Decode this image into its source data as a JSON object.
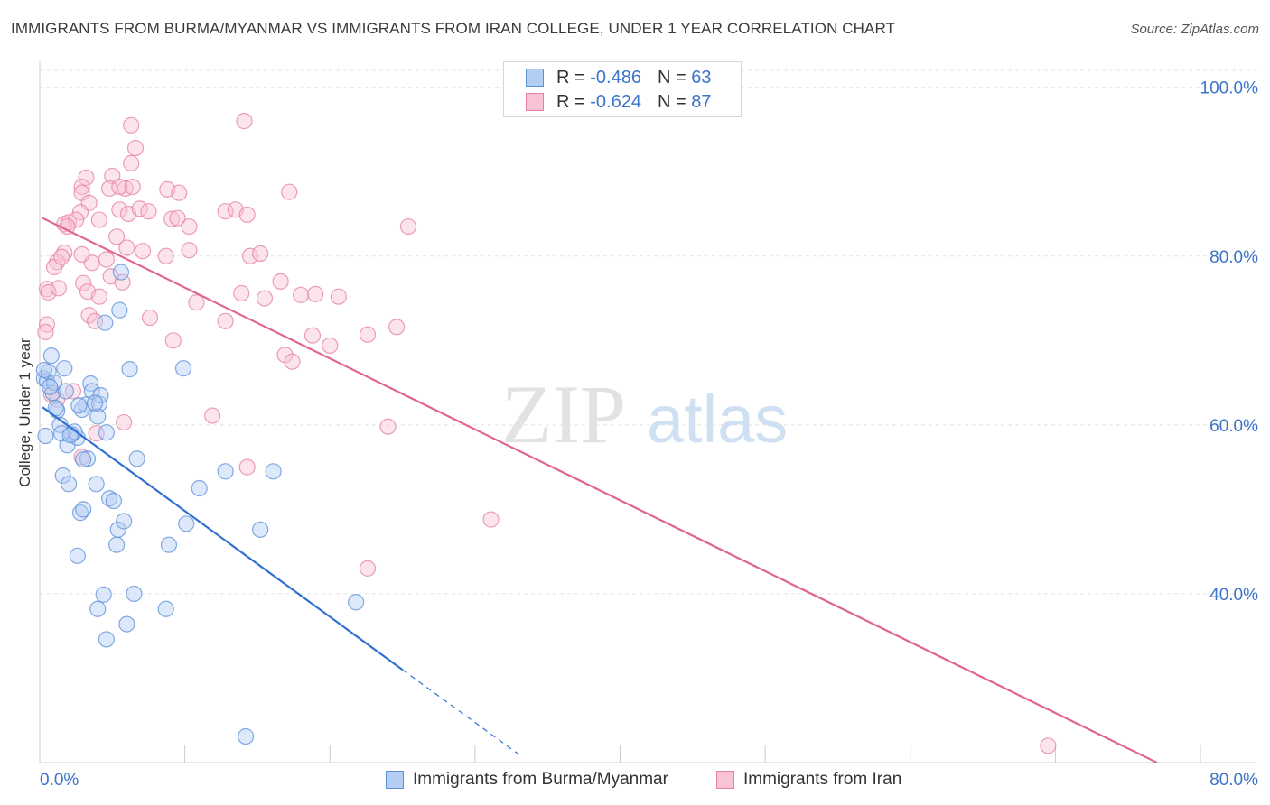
{
  "header": {
    "title": "IMMIGRANTS FROM BURMA/MYANMAR VS IMMIGRANTS FROM IRAN COLLEGE, UNDER 1 YEAR CORRELATION CHART",
    "source": "Source: ZipAtlas.com"
  },
  "watermark": {
    "zip": "ZIP",
    "atlas": "atlas"
  },
  "stats_legend": {
    "rows": [
      {
        "r_label": "R =",
        "r_value": "-0.486",
        "n_label": "N =",
        "n_value": "63"
      },
      {
        "r_label": "R =",
        "r_value": "-0.624",
        "n_label": "N =",
        "n_value": "87"
      }
    ]
  },
  "bottom_legend": {
    "burma": "Immigrants from Burma/Myanmar",
    "iran": "Immigrants from Iran"
  },
  "chart_data": {
    "type": "scatter",
    "title": "IMMIGRANTS FROM BURMA/MYANMAR VS IMMIGRANTS FROM IRAN COLLEGE, UNDER 1 YEAR CORRELATION CHART",
    "xlabel": "",
    "ylabel": "College, Under 1 year",
    "xlim": [
      0,
      80
    ],
    "ylim": [
      20,
      102
    ],
    "x_ticks": [
      0,
      10,
      20,
      30,
      40,
      50,
      60,
      70,
      80
    ],
    "x_tick_labels": [
      "0.0%",
      "80.0%"
    ],
    "y_ticks": [
      40,
      60,
      80,
      100
    ],
    "y_tick_labels": [
      "40.0%",
      "60.0%",
      "80.0%",
      "100.0%"
    ],
    "grid": true,
    "colors": {
      "burma": "#5b8fd8",
      "burma_fill": "#b3cdf3",
      "iran": "#e67fa0",
      "iran_fill": "#f8c4d4"
    },
    "series": [
      {
        "name": "Immigrants from Burma/Myanmar",
        "R": -0.486,
        "N": 63,
        "trend": {
          "x0": 0.2,
          "y0": 62.1,
          "x1": 25.0,
          "y1": 31.0,
          "dash_to_x": 33.0,
          "dash_to_y": 21.0
        },
        "points": [
          [
            0.3,
            65.5
          ],
          [
            0.5,
            65.2
          ],
          [
            0.6,
            66.3
          ],
          [
            0.3,
            66.5
          ],
          [
            0.8,
            68.2
          ],
          [
            0.9,
            63.8
          ],
          [
            1.0,
            65.0
          ],
          [
            0.4,
            58.7
          ],
          [
            1.2,
            61.7
          ],
          [
            1.4,
            60.0
          ],
          [
            1.7,
            66.7
          ],
          [
            1.8,
            64.0
          ],
          [
            2.2,
            58.9
          ],
          [
            1.6,
            54.0
          ],
          [
            1.9,
            57.6
          ],
          [
            2.0,
            53.0
          ],
          [
            2.6,
            58.5
          ],
          [
            2.9,
            61.8
          ],
          [
            3.2,
            62.4
          ],
          [
            3.5,
            64.9
          ],
          [
            3.6,
            64.0
          ],
          [
            3.3,
            56.0
          ],
          [
            3.0,
            55.9
          ],
          [
            3.9,
            53.0
          ],
          [
            4.1,
            62.5
          ],
          [
            4.0,
            61.0
          ],
          [
            4.2,
            63.5
          ],
          [
            4.6,
            59.1
          ],
          [
            4.8,
            51.3
          ],
          [
            5.1,
            51.0
          ],
          [
            2.8,
            49.6
          ],
          [
            3.0,
            50.0
          ],
          [
            5.4,
            47.6
          ],
          [
            5.3,
            45.8
          ],
          [
            5.8,
            48.6
          ],
          [
            2.6,
            44.5
          ],
          [
            4.4,
            39.9
          ],
          [
            4.0,
            38.2
          ],
          [
            6.5,
            40.0
          ],
          [
            6.0,
            36.4
          ],
          [
            4.6,
            34.6
          ],
          [
            8.7,
            38.2
          ],
          [
            8.9,
            45.8
          ],
          [
            10.1,
            48.3
          ],
          [
            11.0,
            52.5
          ],
          [
            12.8,
            54.5
          ],
          [
            15.2,
            47.6
          ],
          [
            16.1,
            54.5
          ],
          [
            6.7,
            56.0
          ],
          [
            6.2,
            66.6
          ],
          [
            5.5,
            73.6
          ],
          [
            4.5,
            72.1
          ],
          [
            5.6,
            78.1
          ],
          [
            9.9,
            66.7
          ],
          [
            21.8,
            39.0
          ],
          [
            14.2,
            23.1
          ],
          [
            1.1,
            62.0
          ],
          [
            2.4,
            59.2
          ],
          [
            3.8,
            62.6
          ],
          [
            1.5,
            59.0
          ],
          [
            2.7,
            62.3
          ],
          [
            0.7,
            64.5
          ],
          [
            2.1,
            58.8
          ]
        ]
      },
      {
        "name": "Immigrants from Iran",
        "R": -0.624,
        "N": 87,
        "trend": {
          "x0": 0.2,
          "y0": 84.5,
          "x1": 77.0,
          "y1": 20.0
        },
        "points": [
          [
            6.3,
            95.5
          ],
          [
            14.1,
            96.0
          ],
          [
            6.6,
            92.8
          ],
          [
            6.3,
            91.0
          ],
          [
            3.2,
            89.3
          ],
          [
            2.9,
            88.2
          ],
          [
            5.0,
            89.5
          ],
          [
            4.8,
            88.0
          ],
          [
            5.9,
            88.0
          ],
          [
            5.5,
            88.2
          ],
          [
            6.4,
            88.2
          ],
          [
            8.8,
            87.9
          ],
          [
            9.6,
            87.5
          ],
          [
            2.9,
            87.5
          ],
          [
            3.4,
            86.3
          ],
          [
            2.8,
            85.2
          ],
          [
            5.5,
            85.5
          ],
          [
            6.1,
            85.0
          ],
          [
            6.9,
            85.6
          ],
          [
            7.5,
            85.3
          ],
          [
            9.1,
            84.4
          ],
          [
            9.5,
            84.5
          ],
          [
            10.3,
            83.5
          ],
          [
            12.8,
            85.3
          ],
          [
            13.5,
            85.5
          ],
          [
            14.3,
            84.9
          ],
          [
            17.2,
            87.6
          ],
          [
            25.4,
            83.5
          ],
          [
            1.7,
            83.8
          ],
          [
            2.0,
            84.0
          ],
          [
            2.5,
            84.3
          ],
          [
            1.9,
            83.5
          ],
          [
            4.1,
            84.3
          ],
          [
            5.3,
            82.3
          ],
          [
            6.0,
            81.0
          ],
          [
            7.1,
            80.6
          ],
          [
            8.7,
            80.0
          ],
          [
            10.3,
            80.7
          ],
          [
            14.5,
            80.0
          ],
          [
            15.2,
            80.3
          ],
          [
            3.6,
            79.2
          ],
          [
            4.6,
            79.6
          ],
          [
            1.7,
            80.4
          ],
          [
            1.2,
            79.3
          ],
          [
            1.0,
            78.7
          ],
          [
            1.5,
            79.9
          ],
          [
            2.9,
            80.2
          ],
          [
            3.0,
            76.8
          ],
          [
            4.9,
            77.6
          ],
          [
            5.7,
            76.9
          ],
          [
            0.5,
            76.1
          ],
          [
            0.6,
            75.7
          ],
          [
            1.3,
            76.2
          ],
          [
            3.3,
            75.8
          ],
          [
            4.1,
            75.2
          ],
          [
            7.6,
            72.7
          ],
          [
            10.8,
            74.5
          ],
          [
            12.8,
            72.3
          ],
          [
            13.9,
            75.6
          ],
          [
            15.5,
            75.0
          ],
          [
            16.6,
            77.0
          ],
          [
            18.0,
            75.4
          ],
          [
            19.0,
            75.5
          ],
          [
            20.6,
            75.2
          ],
          [
            0.5,
            71.9
          ],
          [
            0.4,
            71.0
          ],
          [
            3.4,
            73.0
          ],
          [
            3.8,
            72.3
          ],
          [
            9.2,
            70.0
          ],
          [
            18.8,
            70.6
          ],
          [
            20.0,
            69.4
          ],
          [
            16.9,
            68.3
          ],
          [
            17.4,
            67.5
          ],
          [
            22.6,
            70.7
          ],
          [
            24.6,
            71.6
          ],
          [
            0.8,
            63.6
          ],
          [
            1.2,
            63.0
          ],
          [
            2.3,
            64.0
          ],
          [
            5.8,
            60.3
          ],
          [
            11.9,
            61.1
          ],
          [
            2.9,
            56.2
          ],
          [
            14.3,
            55.0
          ],
          [
            24.0,
            59.8
          ],
          [
            3.9,
            59.0
          ],
          [
            31.1,
            48.8
          ],
          [
            22.6,
            43.0
          ],
          [
            69.5,
            22.0
          ]
        ]
      }
    ]
  }
}
